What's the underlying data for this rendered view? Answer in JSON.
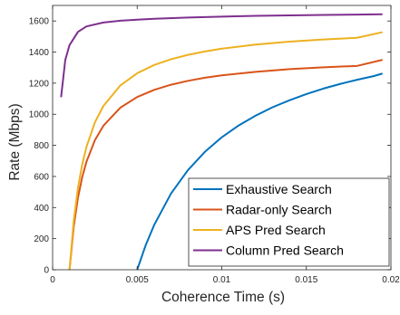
{
  "chart_data": {
    "type": "line",
    "title": "",
    "xlabel": "Coherence Time (s)",
    "ylabel": "Rate (Mbps)",
    "xlim": [
      0,
      0.02
    ],
    "ylim": [
      0,
      1700
    ],
    "xticks": [
      0,
      0.005,
      0.01,
      0.015,
      0.02
    ],
    "xtick_labels": [
      "0",
      "0.005",
      "0.01",
      "0.015",
      "0.02"
    ],
    "yticks": [
      0,
      200,
      400,
      600,
      800,
      1000,
      1200,
      1400,
      1600
    ],
    "ytick_labels": [
      "0",
      "200",
      "400",
      "600",
      "800",
      "1000",
      "1200",
      "1400",
      "1600"
    ],
    "grid": false,
    "legend_position": "bottom-right",
    "series": [
      {
        "name": "Exhaustive Search",
        "color": "#0072BD",
        "x": [
          0.005,
          0.0055,
          0.006,
          0.007,
          0.008,
          0.009,
          0.01,
          0.011,
          0.012,
          0.013,
          0.014,
          0.015,
          0.016,
          0.017,
          0.018,
          0.019,
          0.0195
        ],
        "y": [
          0,
          157,
          287,
          490,
          641,
          758,
          852,
          928,
          991,
          1045,
          1090,
          1130,
          1165,
          1195,
          1222,
          1246,
          1262
        ]
      },
      {
        "name": "Radar-only Search",
        "color": "#D95319",
        "x": [
          0.001,
          0.00125,
          0.0015,
          0.00175,
          0.002,
          0.0025,
          0.003,
          0.004,
          0.005,
          0.006,
          0.007,
          0.008,
          0.009,
          0.01,
          0.012,
          0.014,
          0.016,
          0.018,
          0.0195
        ],
        "y": [
          0,
          278,
          463,
          596,
          694,
          833,
          926,
          1042,
          1111,
          1157,
          1190,
          1215,
          1235,
          1250,
          1273,
          1290,
          1302,
          1311,
          1350
        ]
      },
      {
        "name": "APS Pred Search",
        "color": "#EDB120",
        "x": [
          0.001,
          0.00125,
          0.0015,
          0.00175,
          0.002,
          0.0025,
          0.003,
          0.004,
          0.005,
          0.006,
          0.007,
          0.008,
          0.009,
          0.01,
          0.012,
          0.014,
          0.016,
          0.018,
          0.0195
        ],
        "y": [
          0,
          316,
          527,
          677,
          790,
          948,
          1053,
          1185,
          1264,
          1317,
          1354,
          1382,
          1404,
          1422,
          1448,
          1467,
          1481,
          1492,
          1528
        ]
      },
      {
        "name": "Column Pred Search",
        "color": "#7E2F8E",
        "x": [
          0.0005,
          0.00075,
          0.001,
          0.0015,
          0.002,
          0.003,
          0.004,
          0.005,
          0.006,
          0.008,
          0.01,
          0.012,
          0.014,
          0.016,
          0.018,
          0.0195
        ],
        "y": [
          1110,
          1350,
          1445,
          1530,
          1565,
          1590,
          1602,
          1608,
          1614,
          1622,
          1628,
          1633,
          1636,
          1639,
          1641,
          1643
        ]
      }
    ]
  }
}
